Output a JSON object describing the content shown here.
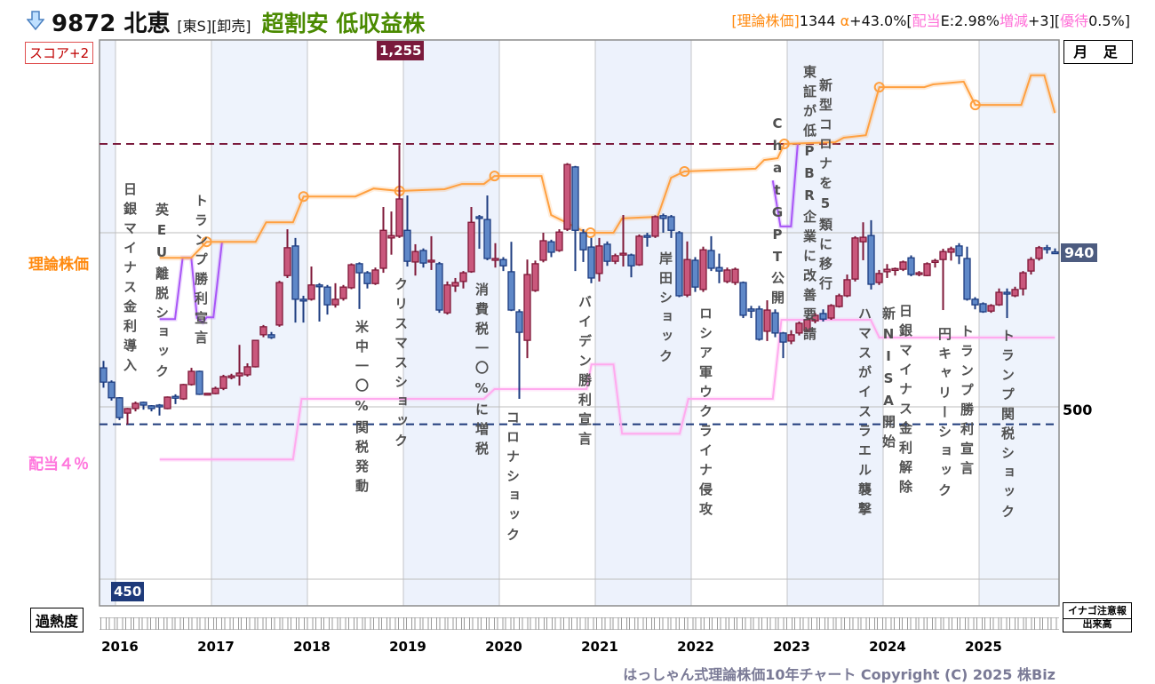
{
  "header": {
    "code": "9872 北恵",
    "market": "[東S][卸売]",
    "rating": "超割安 低収益株",
    "theory_label": "[理論株価]",
    "theory_value": "1344",
    "alpha_label": " α",
    "alpha_value": "+43.0%[",
    "div_label": "配当",
    "div_value": "E:2.98%",
    "change_label": "増減",
    "change_value": "+3][",
    "yutai_label": "優待",
    "yutai_value": "0.5%]"
  },
  "score": "スコア+2",
  "timeframe": "月 足",
  "left_labels": {
    "theory": "理論株価",
    "dividend": "配当４％"
  },
  "price_labels": {
    "current": "940",
    "gridline": "500",
    "high": "1,255",
    "low": "450"
  },
  "events": [
    "日銀マイナス金利導入",
    "英EU離脱ショック",
    "トランプ勝利宣言",
    "米中一〇%関税発動",
    "クリスマスショック",
    "消費税一〇%に増税",
    "コロナショック",
    "バイデン勝利宣言",
    "岸田ショック",
    "ロシア軍ウクライナ侵攻",
    "ChatGPT公開",
    "東証が低PBR企業に改善要請",
    "新型コロナを5類に移行",
    "ハマスがイスラエル襲撃",
    "新NISA開始",
    "日銀マイナス金利解除",
    "円キャリーショック",
    "トランプ勝利宣言",
    "トランプ関税ショック"
  ],
  "bottom": {
    "overheat": "過熱度",
    "inago": "イナゴ注意報",
    "volume": "出来高",
    "copyright": "はっしゃん式理論株価10年チャート Copyright (C) 2025 株Biz"
  },
  "colors": {
    "up": "#c9587c",
    "up_edge": "#7f1838",
    "down": "#5f88c8",
    "down_edge": "#1d3c80",
    "theory": "#ffa040",
    "purple": "#a855f7",
    "dividend": "#ffaaee",
    "high_line": "#7a1a3c",
    "low_line": "#1e3a7a"
  },
  "chart_data": {
    "type": "candlestick",
    "title": "9872 北恵 月足",
    "x_ticks": [
      "2016",
      "2017",
      "2018",
      "2019",
      "2020",
      "2021",
      "2022",
      "2023",
      "2024",
      "2025"
    ],
    "y_gridlines": [
      500,
      1000
    ],
    "ylim": [
      -70,
      1550
    ],
    "first_month": "2015-11",
    "ohlc": [
      [
        612,
        632,
        555,
        571
      ],
      [
        571,
        576,
        518,
        526
      ],
      [
        526,
        528,
        462,
        469
      ],
      [
        482,
        497,
        449,
        495
      ],
      [
        495,
        515,
        487,
        510
      ],
      [
        513,
        515,
        492,
        505
      ],
      [
        503,
        505,
        487,
        495
      ],
      [
        505,
        508,
        475,
        502
      ],
      [
        495,
        530,
        493,
        528
      ],
      [
        530,
        536,
        508,
        527
      ],
      [
        523,
        566,
        520,
        564
      ],
      [
        564,
        612,
        561,
        602
      ],
      [
        602,
        604,
        534,
        536
      ],
      [
        536,
        540,
        533,
        539
      ],
      [
        538,
        558,
        536,
        553
      ],
      [
        553,
        592,
        548,
        587
      ],
      [
        584,
        595,
        579,
        589
      ],
      [
        589,
        678,
        561,
        597
      ],
      [
        592,
        625,
        587,
        615
      ],
      [
        615,
        691,
        613,
        691
      ],
      [
        707,
        735,
        700,
        730
      ],
      [
        707,
        715,
        695,
        699
      ],
      [
        735,
        862,
        730,
        857
      ],
      [
        877,
        1010,
        870,
        957
      ],
      [
        962,
        985,
        742,
        809
      ],
      [
        809,
        819,
        742,
        804
      ],
      [
        809,
        903,
        805,
        850
      ],
      [
        850,
        855,
        745,
        845
      ],
      [
        844,
        850,
        765,
        793
      ],
      [
        793,
        855,
        785,
        809
      ],
      [
        811,
        850,
        805,
        844
      ],
      [
        842,
        912,
        838,
        908
      ],
      [
        911,
        915,
        781,
        885
      ],
      [
        885,
        890,
        840,
        854
      ],
      [
        854,
        900,
        850,
        893
      ],
      [
        898,
        1074,
        885,
        1007
      ],
      [
        985,
        1061,
        937,
        992
      ],
      [
        990,
        1252,
        985,
        1097
      ],
      [
        1007,
        1107,
        903,
        918
      ],
      [
        916,
        967,
        877,
        946
      ],
      [
        949,
        955,
        900,
        913
      ],
      [
        916,
        990,
        893,
        921
      ],
      [
        911,
        916,
        770,
        778
      ],
      [
        770,
        860,
        765,
        850
      ],
      [
        847,
        870,
        830,
        857
      ],
      [
        860,
        890,
        840,
        885
      ],
      [
        888,
        1074,
        885,
        1030
      ],
      [
        1046,
        1051,
        954,
        1041
      ],
      [
        1038,
        1107,
        921,
        926
      ],
      [
        921,
        970,
        900,
        926
      ],
      [
        923,
        930,
        890,
        905
      ],
      [
        888,
        974,
        775,
        778
      ],
      [
        773,
        780,
        523,
        714
      ],
      [
        691,
        923,
        640,
        880
      ],
      [
        834,
        920,
        830,
        911
      ],
      [
        921,
        1000,
        915,
        977
      ],
      [
        974,
        980,
        930,
        944
      ],
      [
        949,
        1010,
        945,
        1002
      ],
      [
        1010,
        1200,
        1005,
        1196
      ],
      [
        1189,
        1192,
        890,
        1007
      ],
      [
        1000,
        1010,
        916,
        951
      ],
      [
        959,
        985,
        855,
        870
      ],
      [
        883,
        985,
        860,
        962
      ],
      [
        967,
        975,
        905,
        918
      ],
      [
        918,
        940,
        910,
        934
      ],
      [
        938,
        1051,
        903,
        941
      ],
      [
        936,
        940,
        872,
        905
      ],
      [
        908,
        995,
        905,
        990
      ],
      [
        992,
        1000,
        960,
        988
      ],
      [
        990,
        1050,
        985,
        1046
      ],
      [
        1049,
        1055,
        1000,
        1041
      ],
      [
        1046,
        1051,
        985,
        1007
      ],
      [
        1000,
        1005,
        815,
        819
      ],
      [
        821,
        975,
        815,
        923
      ],
      [
        921,
        930,
        830,
        844
      ],
      [
        837,
        960,
        830,
        951
      ],
      [
        949,
        990,
        890,
        898
      ],
      [
        900,
        940,
        855,
        890
      ],
      [
        860,
        900,
        855,
        893
      ],
      [
        857,
        900,
        850,
        895
      ],
      [
        857,
        860,
        755,
        763
      ],
      [
        781,
        790,
        755,
        775
      ],
      [
        781,
        790,
        690,
        694
      ],
      [
        717,
        806,
        689,
        778
      ],
      [
        770,
        780,
        700,
        712
      ],
      [
        712,
        715,
        640,
        686
      ],
      [
        689,
        720,
        680,
        707
      ],
      [
        712,
        745,
        705,
        740
      ],
      [
        719,
        755,
        715,
        750
      ],
      [
        747,
        770,
        740,
        763
      ],
      [
        768,
        780,
        745,
        752
      ],
      [
        755,
        795,
        750,
        791
      ],
      [
        788,
        825,
        785,
        819
      ],
      [
        819,
        880,
        815,
        865
      ],
      [
        867,
        990,
        860,
        985
      ],
      [
        974,
        1030,
        921,
        987
      ],
      [
        992,
        1036,
        837,
        852
      ],
      [
        857,
        893,
        850,
        883
      ],
      [
        888,
        910,
        870,
        895
      ],
      [
        893,
        900,
        877,
        897
      ],
      [
        895,
        920,
        890,
        916
      ],
      [
        928,
        935,
        875,
        880
      ],
      [
        880,
        890,
        875,
        885
      ],
      [
        877,
        915,
        875,
        911
      ],
      [
        916,
        925,
        900,
        920
      ],
      [
        923,
        954,
        778,
        946
      ],
      [
        944,
        960,
        920,
        954
      ],
      [
        962,
        970,
        910,
        934
      ],
      [
        926,
        960,
        805,
        809
      ],
      [
        809,
        815,
        780,
        793
      ],
      [
        796,
        800,
        770,
        773
      ],
      [
        775,
        795,
        770,
        791
      ],
      [
        793,
        840,
        790,
        829
      ],
      [
        829,
        840,
        755,
        826
      ],
      [
        819,
        845,
        815,
        837
      ],
      [
        839,
        890,
        820,
        885
      ],
      [
        890,
        930,
        880,
        923
      ],
      [
        926,
        962,
        920,
        957
      ],
      [
        957,
        965,
        940,
        954
      ],
      [
        945,
        955,
        940,
        940
      ]
    ],
    "theory_price": [
      [
        2016.46,
        928
      ],
      [
        2016.79,
        928
      ],
      [
        2016.95,
        974
      ],
      [
        2017.46,
        974
      ],
      [
        2017.57,
        1030
      ],
      [
        2017.85,
        1030
      ],
      [
        2017.96,
        1104
      ],
      [
        2018.5,
        1104
      ],
      [
        2018.69,
        1127
      ],
      [
        2018.96,
        1120
      ],
      [
        2019.43,
        1125
      ],
      [
        2019.61,
        1140
      ],
      [
        2019.84,
        1140
      ],
      [
        2019.95,
        1163
      ],
      [
        2020.44,
        1163
      ],
      [
        2020.54,
        1051
      ],
      [
        2020.91,
        1000
      ],
      [
        2021.19,
        1000
      ],
      [
        2021.28,
        1041
      ],
      [
        2021.65,
        1046
      ],
      [
        2021.79,
        1158
      ],
      [
        2021.93,
        1176
      ],
      [
        2022.67,
        1184
      ],
      [
        2022.76,
        1209
      ],
      [
        2022.9,
        1214
      ],
      [
        2022.97,
        1255
      ],
      [
        2023.5,
        1260
      ],
      [
        2023.59,
        1273
      ],
      [
        2023.82,
        1280
      ],
      [
        2023.96,
        1418
      ],
      [
        2024.43,
        1418
      ],
      [
        2024.52,
        1426
      ],
      [
        2024.84,
        1434
      ],
      [
        2024.96,
        1367
      ],
      [
        2025.44,
        1367
      ],
      [
        2025.54,
        1452
      ],
      [
        2025.68,
        1452
      ],
      [
        2025.79,
        1344
      ]
    ],
    "theory_markers": [
      [
        2016.95,
        974
      ],
      [
        2017.96,
        1104
      ],
      [
        2018.96,
        1120
      ],
      [
        2019.95,
        1163
      ],
      [
        2020.95,
        1000
      ],
      [
        2021.93,
        1176
      ],
      [
        2022.97,
        1255
      ],
      [
        2023.96,
        1418
      ],
      [
        2024.96,
        1367
      ]
    ],
    "purple_segments": [
      [
        [
          2016.46,
          752
        ],
        [
          2016.62,
          752
        ],
        [
          2016.7,
          928
        ],
        [
          2016.79,
          928
        ],
        [
          2016.85,
          755
        ],
        [
          2016.91,
          742
        ],
        [
          2016.95,
          757
        ],
        [
          2017.02,
          757
        ],
        [
          2017.11,
          974
        ]
      ],
      [
        [
          2022.85,
          1150
        ],
        [
          2022.93,
          1018
        ],
        [
          2023.04,
          1018
        ],
        [
          2023.11,
          1255
        ]
      ]
    ],
    "dividend_4pct": [
      [
        2016.46,
        349
      ],
      [
        2017.85,
        349
      ],
      [
        2017.94,
        523
      ],
      [
        2019.84,
        523
      ],
      [
        2019.95,
        551
      ],
      [
        2020.91,
        551
      ],
      [
        2020.96,
        622
      ],
      [
        2021.19,
        622
      ],
      [
        2021.28,
        423
      ],
      [
        2021.88,
        423
      ],
      [
        2021.97,
        523
      ],
      [
        2022.85,
        523
      ],
      [
        2022.94,
        750
      ],
      [
        2023.87,
        750
      ],
      [
        2023.96,
        699
      ],
      [
        2025.79,
        699
      ]
    ],
    "high_line": 1255,
    "low_line": 450,
    "current": 940
  }
}
